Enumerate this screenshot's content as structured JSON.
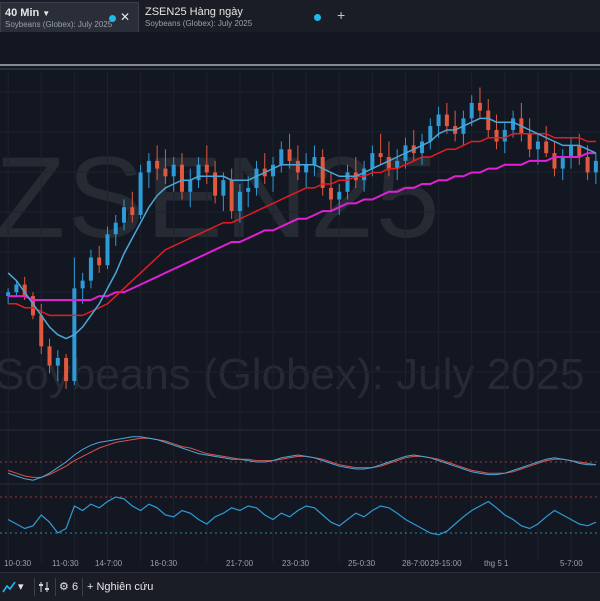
{
  "tabs": [
    {
      "title": "40 Min",
      "subtitle": "Soybeans (Globex): July 2025",
      "active": true
    },
    {
      "title": "ZSEN25 Hàng ngày",
      "subtitle": "Soybeans (Globex): July 2025",
      "active": false
    }
  ],
  "watermark": {
    "symbol": "ZSEN25",
    "description": "Soybeans (Globex): July 2025"
  },
  "time_axis": {
    "labels": [
      "10-0:30",
      "11-0:30",
      "14-7:00",
      "16-0:30",
      "21-7:00",
      "23-0:30",
      "25-0:30",
      "28-7:00",
      "29-15:00",
      "thg 5 1",
      "5-7:00"
    ]
  },
  "bottom_bar": {
    "count": "6",
    "research_label": "Nghiên cứu"
  },
  "colors": {
    "background": "#131722",
    "up_candle": "#2e9bd6",
    "down_candle": "#e0593f",
    "ma_fast": "#4aa8d8",
    "ma_mid": "#e51c23",
    "ma_slow": "#e21fd5",
    "accent": "#22b8e8"
  },
  "icons": {
    "caret": "chevron-down-icon",
    "close": "close-icon",
    "add": "plus-icon",
    "settings": "gear-icon",
    "drawing": "drawing-icon"
  },
  "chart_data": {
    "type": "candlestick",
    "series": [
      {
        "name": "",
        "values": [
          [
            1060,
            1062,
            1058,
            1061
          ],
          [
            1061,
            1064,
            1060,
            1063
          ],
          [
            1063,
            1065,
            1059,
            1060
          ],
          [
            1060,
            1061,
            1054,
            1055
          ],
          [
            1055,
            1058,
            1045,
            1047
          ],
          [
            1047,
            1049,
            1040,
            1042
          ],
          [
            1042,
            1046,
            1038,
            1044
          ],
          [
            1044,
            1045,
            1036,
            1038
          ],
          [
            1038,
            1070,
            1037,
            1062
          ],
          [
            1062,
            1066,
            1058,
            1064
          ],
          [
            1064,
            1072,
            1062,
            1070
          ],
          [
            1070,
            1073,
            1066,
            1068
          ],
          [
            1068,
            1078,
            1067,
            1076
          ],
          [
            1076,
            1081,
            1073,
            1079
          ],
          [
            1079,
            1085,
            1077,
            1083
          ],
          [
            1083,
            1087,
            1079,
            1081
          ],
          [
            1081,
            1094,
            1080,
            1092
          ],
          [
            1092,
            1097,
            1088,
            1095
          ],
          [
            1095,
            1099,
            1090,
            1093
          ],
          [
            1093,
            1098,
            1089,
            1091
          ],
          [
            1091,
            1096,
            1087,
            1094
          ],
          [
            1094,
            1097,
            1085,
            1087
          ],
          [
            1087,
            1093,
            1083,
            1090
          ],
          [
            1090,
            1096,
            1088,
            1094
          ],
          [
            1094,
            1099,
            1089,
            1092
          ],
          [
            1092,
            1095,
            1084,
            1086
          ],
          [
            1086,
            1092,
            1082,
            1090
          ],
          [
            1090,
            1093,
            1080,
            1082
          ],
          [
            1082,
            1089,
            1079,
            1087
          ],
          [
            1087,
            1091,
            1083,
            1088
          ],
          [
            1088,
            1095,
            1086,
            1093
          ],
          [
            1093,
            1097,
            1089,
            1091
          ],
          [
            1091,
            1096,
            1087,
            1094
          ],
          [
            1094,
            1100,
            1092,
            1098
          ],
          [
            1098,
            1102,
            1093,
            1095
          ],
          [
            1095,
            1099,
            1090,
            1092
          ],
          [
            1092,
            1097,
            1088,
            1094
          ],
          [
            1094,
            1099,
            1091,
            1096
          ],
          [
            1096,
            1098,
            1086,
            1088
          ],
          [
            1088,
            1092,
            1082,
            1085
          ],
          [
            1085,
            1089,
            1081,
            1087
          ],
          [
            1087,
            1094,
            1085,
            1092
          ],
          [
            1092,
            1096,
            1088,
            1090
          ],
          [
            1090,
            1095,
            1087,
            1093
          ],
          [
            1093,
            1099,
            1091,
            1097
          ],
          [
            1097,
            1102,
            1094,
            1096
          ],
          [
            1096,
            1100,
            1091,
            1093
          ],
          [
            1093,
            1098,
            1090,
            1095
          ],
          [
            1095,
            1101,
            1093,
            1099
          ],
          [
            1099,
            1103,
            1095,
            1097
          ],
          [
            1097,
            1102,
            1094,
            1100
          ],
          [
            1100,
            1106,
            1098,
            1104
          ],
          [
            1104,
            1109,
            1101,
            1107
          ],
          [
            1107,
            1110,
            1102,
            1104
          ],
          [
            1104,
            1108,
            1100,
            1102
          ],
          [
            1102,
            1108,
            1099,
            1106
          ],
          [
            1106,
            1112,
            1104,
            1110
          ],
          [
            1110,
            1114,
            1106,
            1108
          ],
          [
            1108,
            1111,
            1101,
            1103
          ],
          [
            1103,
            1107,
            1098,
            1100
          ],
          [
            1100,
            1105,
            1097,
            1103
          ],
          [
            1103,
            1108,
            1101,
            1106
          ],
          [
            1106,
            1110,
            1100,
            1102
          ],
          [
            1102,
            1106,
            1096,
            1098
          ],
          [
            1098,
            1102,
            1094,
            1100
          ],
          [
            1100,
            1104,
            1096,
            1097
          ],
          [
            1097,
            1100,
            1091,
            1093
          ],
          [
            1093,
            1098,
            1090,
            1096
          ],
          [
            1096,
            1101,
            1093,
            1099
          ],
          [
            1099,
            1102,
            1094,
            1096
          ],
          [
            1096,
            1099,
            1090,
            1092
          ],
          [
            1092,
            1097,
            1089,
            1095
          ]
        ]
      }
    ],
    "ma_fast": [
      1066,
      1064,
      1061,
      1058,
      1055,
      1052,
      1050,
      1049,
      1050,
      1052,
      1055,
      1058,
      1062,
      1066,
      1071,
      1075,
      1079,
      1083,
      1086,
      1088,
      1089,
      1090,
      1090,
      1091,
      1091,
      1091,
      1091,
      1090,
      1090,
      1090,
      1091,
      1092,
      1093,
      1094,
      1094,
      1094,
      1094,
      1094,
      1093,
      1092,
      1091,
      1091,
      1091,
      1092,
      1093,
      1094,
      1095,
      1096,
      1097,
      1098,
      1099,
      1100,
      1102,
      1103,
      1103,
      1104,
      1105,
      1106,
      1106,
      1105,
      1105,
      1105,
      1104,
      1103,
      1102,
      1101,
      1100,
      1099,
      1099,
      1099,
      1098,
      1097
    ],
    "ma_mid": [
      1058,
      1058,
      1057,
      1057,
      1056,
      1055,
      1055,
      1055,
      1055,
      1055,
      1056,
      1057,
      1058,
      1060,
      1062,
      1064,
      1066,
      1068,
      1070,
      1072,
      1073,
      1074,
      1075,
      1076,
      1077,
      1078,
      1079,
      1079,
      1080,
      1081,
      1082,
      1083,
      1084,
      1085,
      1086,
      1087,
      1088,
      1088,
      1089,
      1089,
      1090,
      1090,
      1091,
      1091,
      1092,
      1092,
      1093,
      1093,
      1094,
      1095,
      1096,
      1096,
      1097,
      1098,
      1098,
      1099,
      1100,
      1100,
      1101,
      1101,
      1101,
      1102,
      1102,
      1102,
      1102,
      1102,
      1101,
      1101,
      1101,
      1101,
      1100,
      1100
    ],
    "ma_slow": [
      1060,
      1060,
      1060,
      1059,
      1059,
      1059,
      1059,
      1059,
      1059,
      1059,
      1059,
      1060,
      1060,
      1061,
      1061,
      1062,
      1063,
      1064,
      1065,
      1066,
      1067,
      1068,
      1069,
      1070,
      1071,
      1072,
      1073,
      1074,
      1074,
      1075,
      1076,
      1077,
      1077,
      1078,
      1079,
      1080,
      1080,
      1081,
      1082,
      1082,
      1083,
      1084,
      1084,
      1085,
      1085,
      1086,
      1087,
      1087,
      1088,
      1088,
      1089,
      1089,
      1090,
      1090,
      1091,
      1091,
      1092,
      1092,
      1093,
      1093,
      1094,
      1094,
      1094,
      1095,
      1095,
      1095,
      1096,
      1096,
      1096,
      1096,
      1097,
      1097
    ],
    "osc1": {
      "line1": [
        -0.8,
        -1.0,
        -1.2,
        -1.3,
        -1.1,
        -0.8,
        -0.4,
        0.0,
        0.5,
        0.9,
        1.2,
        1.4,
        1.5,
        1.6,
        1.7,
        1.8,
        1.8,
        1.7,
        1.6,
        1.4,
        1.2,
        1.0,
        0.8,
        0.6,
        0.5,
        0.4,
        0.3,
        0.2,
        0.2,
        0.1,
        0.0,
        0.0,
        0.1,
        0.3,
        0.4,
        0.5,
        0.4,
        0.3,
        0.1,
        -0.1,
        -0.3,
        -0.4,
        -0.5,
        -0.5,
        -0.4,
        -0.2,
        0.0,
        0.2,
        0.4,
        0.5,
        0.4,
        0.3,
        0.1,
        -0.1,
        -0.3,
        -0.5,
        -0.7,
        -0.8,
        -0.9,
        -0.9,
        -0.8,
        -0.6,
        -0.4,
        -0.2,
        0.0,
        0.2,
        0.3,
        0.2,
        0.1,
        -0.1,
        -0.2,
        -0.2
      ],
      "line2": [
        -0.6,
        -0.8,
        -1.0,
        -1.1,
        -1.1,
        -0.9,
        -0.6,
        -0.3,
        0.1,
        0.4,
        0.7,
        1.0,
        1.2,
        1.4,
        1.5,
        1.6,
        1.7,
        1.7,
        1.6,
        1.5,
        1.3,
        1.1,
        1.0,
        0.8,
        0.6,
        0.5,
        0.4,
        0.3,
        0.2,
        0.2,
        0.1,
        0.1,
        0.1,
        0.2,
        0.3,
        0.4,
        0.4,
        0.3,
        0.2,
        0.0,
        -0.2,
        -0.3,
        -0.4,
        -0.4,
        -0.4,
        -0.3,
        -0.1,
        0.1,
        0.3,
        0.4,
        0.4,
        0.3,
        0.2,
        0.0,
        -0.2,
        -0.4,
        -0.6,
        -0.7,
        -0.8,
        -0.8,
        -0.8,
        -0.7,
        -0.5,
        -0.3,
        -0.1,
        0.1,
        0.2,
        0.2,
        0.1,
        0.0,
        -0.1,
        -0.2
      ]
    },
    "osc2": {
      "values": [
        45,
        40,
        35,
        38,
        50,
        42,
        30,
        35,
        60,
        55,
        62,
        58,
        65,
        70,
        68,
        60,
        55,
        62,
        58,
        50,
        48,
        55,
        52,
        45,
        40,
        48,
        52,
        58,
        55,
        60,
        58,
        50,
        45,
        52,
        48,
        55,
        60,
        58,
        50,
        42,
        38,
        45,
        52,
        48,
        55,
        60,
        58,
        52,
        45,
        40,
        35,
        30,
        28,
        32,
        40,
        48,
        55,
        60,
        65,
        58,
        50,
        45,
        38,
        35,
        40,
        48,
        55,
        50,
        45,
        40,
        38,
        42
      ],
      "upper": 70,
      "lower": 30
    }
  }
}
